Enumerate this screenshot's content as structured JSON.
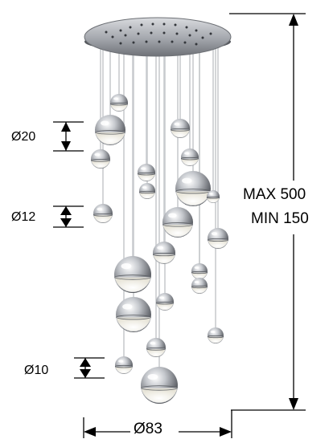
{
  "labels": {
    "height_max": "MAX 500",
    "height_min": "MIN 150",
    "diameter_large": "Ø20",
    "diameter_medium": "Ø12",
    "diameter_small": "Ø10",
    "canopy_width": "Ø83"
  },
  "colors": {
    "line": "#000000",
    "chrome_dark": "#7d8086",
    "chrome_light": "#f2f3f5",
    "glass": "#fbfaf4",
    "wire": "#c9cbcf"
  }
}
